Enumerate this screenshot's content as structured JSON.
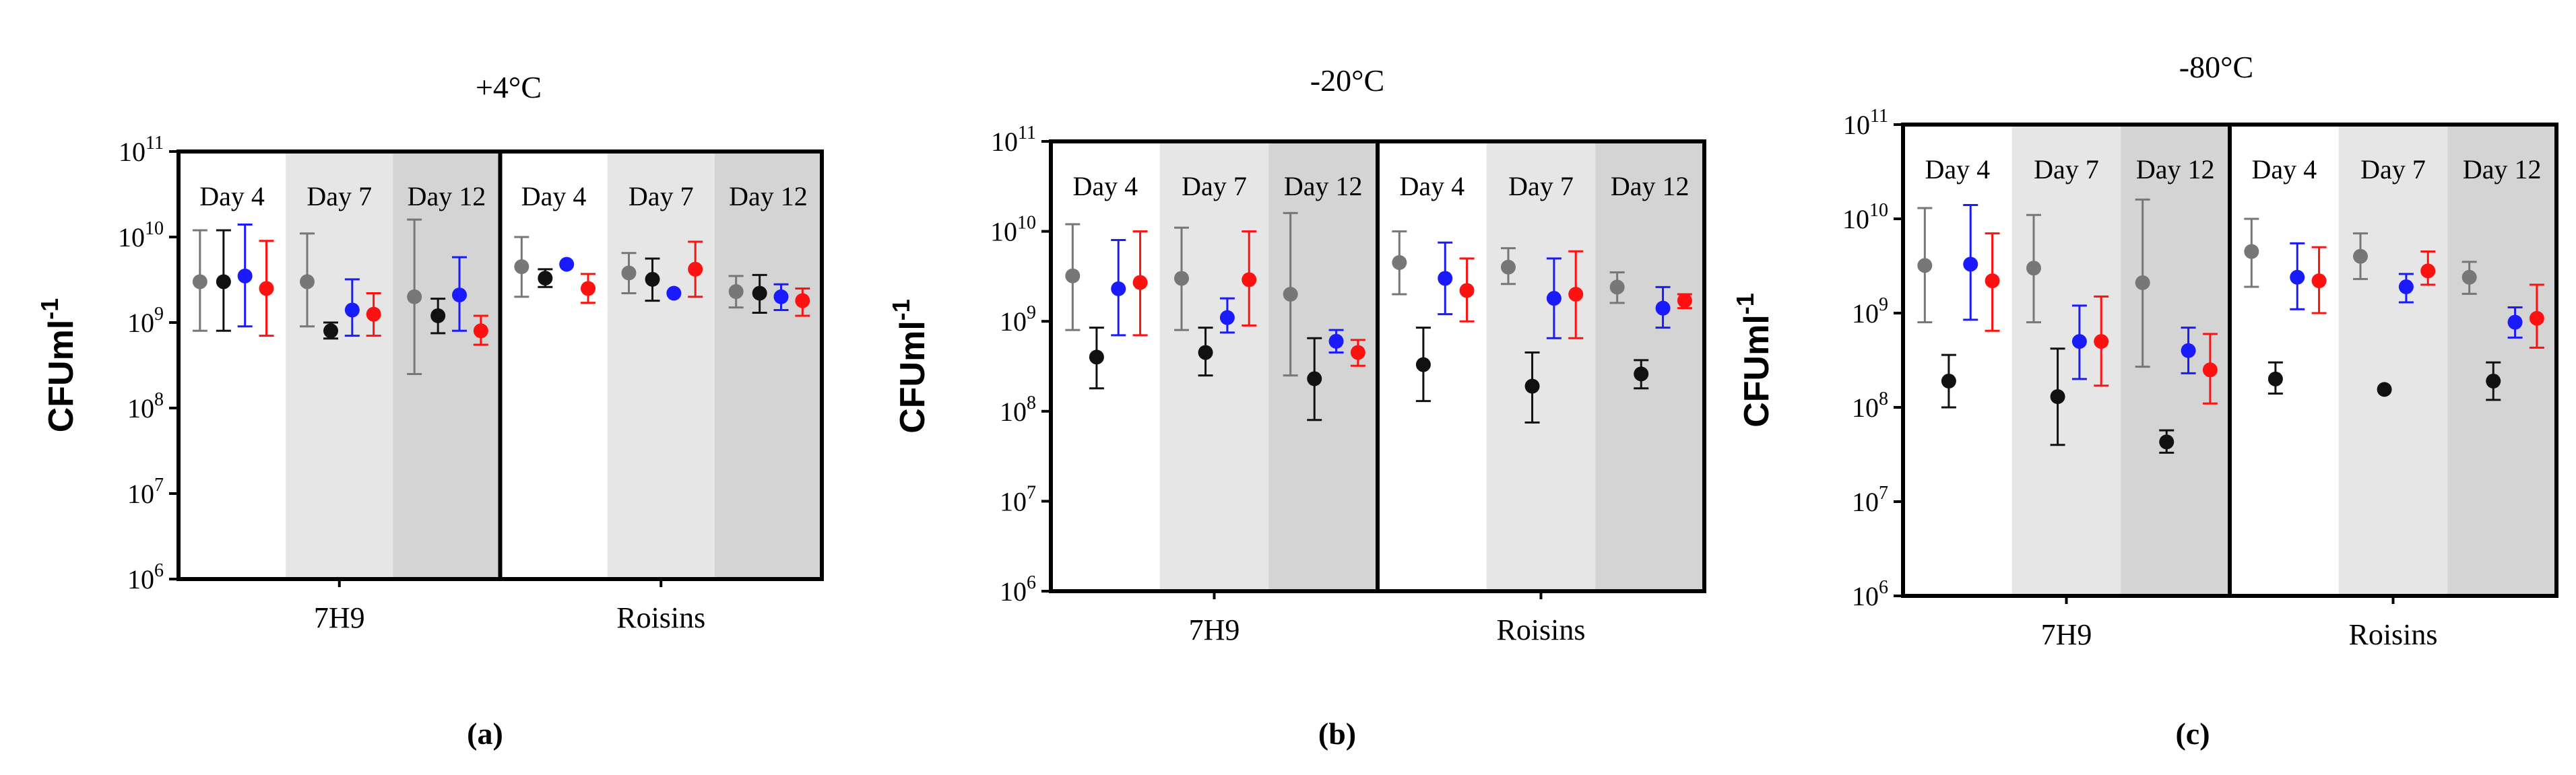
{
  "colors": {
    "grey": "#777777",
    "black": "#111111",
    "blue": "#1a1aff",
    "red": "#ff1111",
    "shade_light": "#e6e6e6",
    "shade_dark": "#d4d4d4"
  },
  "chart_data": [
    {
      "type": "scatter",
      "title": "+4°C",
      "caption": "(a)",
      "ylabel_main": "CFUml",
      "ylabel_sup": "-1",
      "yscale": "log",
      "ylim": [
        1000000,
        100000000000
      ],
      "yticks": [
        {
          "base": "10",
          "exp": "6"
        },
        {
          "base": "10",
          "exp": "7"
        },
        {
          "base": "10",
          "exp": "8"
        },
        {
          "base": "10",
          "exp": "9"
        },
        {
          "base": "10",
          "exp": "10"
        },
        {
          "base": "10",
          "exp": "11"
        }
      ],
      "groups": [
        "7H9",
        "Roisins"
      ],
      "days": [
        "Day 4",
        "Day 7",
        "Day 12"
      ],
      "series": [
        "grey",
        "black",
        "blue",
        "red"
      ],
      "points": [
        {
          "group": 0,
          "day": 0,
          "series": "grey",
          "y": 3000000000,
          "lo": 800000000,
          "hi": 12000000000
        },
        {
          "group": 0,
          "day": 0,
          "series": "black",
          "y": 3000000000,
          "lo": 800000000,
          "hi": 12000000000
        },
        {
          "group": 0,
          "day": 0,
          "series": "blue",
          "y": 3500000000,
          "lo": 900000000,
          "hi": 14000000000
        },
        {
          "group": 0,
          "day": 0,
          "series": "red",
          "y": 2500000000,
          "lo": 700000000,
          "hi": 9000000000
        },
        {
          "group": 0,
          "day": 1,
          "series": "grey",
          "y": 3000000000,
          "lo": 900000000,
          "hi": 11000000000
        },
        {
          "group": 0,
          "day": 1,
          "series": "black",
          "y": 800000000,
          "lo": 650000000,
          "hi": 1000000000
        },
        {
          "group": 0,
          "day": 1,
          "series": "blue",
          "y": 1400000000,
          "lo": 700000000,
          "hi": 3200000000
        },
        {
          "group": 0,
          "day": 1,
          "series": "red",
          "y": 1250000000,
          "lo": 700000000,
          "hi": 2200000000
        },
        {
          "group": 0,
          "day": 2,
          "series": "grey",
          "y": 2000000000,
          "lo": 250000000,
          "hi": 16000000000
        },
        {
          "group": 0,
          "day": 2,
          "series": "black",
          "y": 1200000000,
          "lo": 750000000,
          "hi": 1900000000
        },
        {
          "group": 0,
          "day": 2,
          "series": "blue",
          "y": 2100000000,
          "lo": 800000000,
          "hi": 5800000000
        },
        {
          "group": 0,
          "day": 2,
          "series": "red",
          "y": 800000000,
          "lo": 550000000,
          "hi": 1200000000
        },
        {
          "group": 1,
          "day": 0,
          "series": "grey",
          "y": 4500000000,
          "lo": 2000000000,
          "hi": 10000000000
        },
        {
          "group": 1,
          "day": 0,
          "series": "black",
          "y": 3300000000,
          "lo": 2600000000,
          "hi": 4200000000
        },
        {
          "group": 1,
          "day": 0,
          "series": "blue",
          "y": 4800000000,
          "lo": 4800000000,
          "hi": 4800000000
        },
        {
          "group": 1,
          "day": 0,
          "series": "red",
          "y": 2500000000,
          "lo": 1700000000,
          "hi": 3700000000
        },
        {
          "group": 1,
          "day": 1,
          "series": "grey",
          "y": 3800000000,
          "lo": 2200000000,
          "hi": 6500000000
        },
        {
          "group": 1,
          "day": 1,
          "series": "black",
          "y": 3200000000,
          "lo": 1800000000,
          "hi": 5600000000
        },
        {
          "group": 1,
          "day": 1,
          "series": "blue",
          "y": 2200000000,
          "lo": 2200000000,
          "hi": 2200000000
        },
        {
          "group": 1,
          "day": 1,
          "series": "red",
          "y": 4200000000,
          "lo": 2000000000,
          "hi": 8800000000
        },
        {
          "group": 1,
          "day": 2,
          "series": "grey",
          "y": 2300000000,
          "lo": 1500000000,
          "hi": 3500000000
        },
        {
          "group": 1,
          "day": 2,
          "series": "black",
          "y": 2200000000,
          "lo": 1300000000,
          "hi": 3600000000
        },
        {
          "group": 1,
          "day": 2,
          "series": "blue",
          "y": 2000000000,
          "lo": 1400000000,
          "hi": 2800000000
        },
        {
          "group": 1,
          "day": 2,
          "series": "red",
          "y": 1800000000,
          "lo": 1200000000,
          "hi": 2500000000
        }
      ]
    },
    {
      "type": "scatter",
      "title": "-20°C",
      "caption": "(b)",
      "ylabel_main": "CFUml",
      "ylabel_sup": "-1",
      "yscale": "log",
      "ylim": [
        1000000,
        100000000000
      ],
      "yticks": [
        {
          "base": "10",
          "exp": "6"
        },
        {
          "base": "10",
          "exp": "7"
        },
        {
          "base": "10",
          "exp": "8"
        },
        {
          "base": "10",
          "exp": "9"
        },
        {
          "base": "10",
          "exp": "10"
        },
        {
          "base": "10",
          "exp": "11"
        }
      ],
      "groups": [
        "7H9",
        "Roisins"
      ],
      "days": [
        "Day 4",
        "Day 7",
        "Day 12"
      ],
      "series": [
        "grey",
        "black",
        "blue",
        "red"
      ],
      "points": [
        {
          "group": 0,
          "day": 0,
          "series": "grey",
          "y": 3200000000,
          "lo": 800000000,
          "hi": 12000000000
        },
        {
          "group": 0,
          "day": 0,
          "series": "black",
          "y": 400000000,
          "lo": 180000000,
          "hi": 850000000
        },
        {
          "group": 0,
          "day": 0,
          "series": "blue",
          "y": 2300000000,
          "lo": 700000000,
          "hi": 8000000000
        },
        {
          "group": 0,
          "day": 0,
          "series": "red",
          "y": 2700000000,
          "lo": 700000000,
          "hi": 10000000000
        },
        {
          "group": 0,
          "day": 1,
          "series": "grey",
          "y": 3000000000,
          "lo": 800000000,
          "hi": 11000000000
        },
        {
          "group": 0,
          "day": 1,
          "series": "black",
          "y": 450000000,
          "lo": 250000000,
          "hi": 850000000
        },
        {
          "group": 0,
          "day": 1,
          "series": "blue",
          "y": 1100000000,
          "lo": 750000000,
          "hi": 1800000000
        },
        {
          "group": 0,
          "day": 1,
          "series": "red",
          "y": 2900000000,
          "lo": 900000000,
          "hi": 10000000000
        },
        {
          "group": 0,
          "day": 2,
          "series": "grey",
          "y": 2000000000,
          "lo": 250000000,
          "hi": 16000000000
        },
        {
          "group": 0,
          "day": 2,
          "series": "black",
          "y": 230000000,
          "lo": 80000000,
          "hi": 650000000
        },
        {
          "group": 0,
          "day": 2,
          "series": "blue",
          "y": 600000000,
          "lo": 450000000,
          "hi": 800000000
        },
        {
          "group": 0,
          "day": 2,
          "series": "red",
          "y": 450000000,
          "lo": 320000000,
          "hi": 620000000
        },
        {
          "group": 1,
          "day": 0,
          "series": "grey",
          "y": 4500000000,
          "lo": 2000000000,
          "hi": 10000000000
        },
        {
          "group": 1,
          "day": 0,
          "series": "black",
          "y": 330000000,
          "lo": 130000000,
          "hi": 850000000
        },
        {
          "group": 1,
          "day": 0,
          "series": "blue",
          "y": 3000000000,
          "lo": 1200000000,
          "hi": 7500000000
        },
        {
          "group": 1,
          "day": 0,
          "series": "red",
          "y": 2200000000,
          "lo": 1000000000,
          "hi": 5000000000
        },
        {
          "group": 1,
          "day": 1,
          "series": "grey",
          "y": 4000000000,
          "lo": 2600000000,
          "hi": 6500000000
        },
        {
          "group": 1,
          "day": 1,
          "series": "black",
          "y": 190000000,
          "lo": 75000000,
          "hi": 450000000
        },
        {
          "group": 1,
          "day": 1,
          "series": "blue",
          "y": 1800000000,
          "lo": 650000000,
          "hi": 5000000000
        },
        {
          "group": 1,
          "day": 1,
          "series": "red",
          "y": 2000000000,
          "lo": 650000000,
          "hi": 6000000000
        },
        {
          "group": 1,
          "day": 2,
          "series": "grey",
          "y": 2400000000,
          "lo": 1600000000,
          "hi": 3500000000
        },
        {
          "group": 1,
          "day": 2,
          "series": "black",
          "y": 260000000,
          "lo": 180000000,
          "hi": 370000000
        },
        {
          "group": 1,
          "day": 2,
          "series": "blue",
          "y": 1400000000,
          "lo": 850000000,
          "hi": 2400000000
        },
        {
          "group": 1,
          "day": 2,
          "series": "red",
          "y": 1700000000,
          "lo": 1400000000,
          "hi": 2000000000
        }
      ]
    },
    {
      "type": "scatter",
      "title": "-80°C",
      "caption": "(c)",
      "ylabel_main": "CFUml",
      "ylabel_sup": "-1",
      "yscale": "log",
      "ylim": [
        1000000,
        100000000000
      ],
      "yticks": [
        {
          "base": "10",
          "exp": "6"
        },
        {
          "base": "10",
          "exp": "7"
        },
        {
          "base": "10",
          "exp": "8"
        },
        {
          "base": "10",
          "exp": "9"
        },
        {
          "base": "10",
          "exp": "10"
        },
        {
          "base": "10",
          "exp": "11"
        }
      ],
      "groups": [
        "7H9",
        "Roisins"
      ],
      "days": [
        "Day 4",
        "Day 7",
        "Day 12"
      ],
      "series": [
        "grey",
        "black",
        "blue",
        "red"
      ],
      "points": [
        {
          "group": 0,
          "day": 0,
          "series": "grey",
          "y": 3200000000,
          "lo": 800000000,
          "hi": 13000000000
        },
        {
          "group": 0,
          "day": 0,
          "series": "black",
          "y": 190000000,
          "lo": 100000000,
          "hi": 360000000
        },
        {
          "group": 0,
          "day": 0,
          "series": "blue",
          "y": 3300000000,
          "lo": 850000000,
          "hi": 14000000000
        },
        {
          "group": 0,
          "day": 0,
          "series": "red",
          "y": 2200000000,
          "lo": 650000000,
          "hi": 7000000000
        },
        {
          "group": 0,
          "day": 1,
          "series": "grey",
          "y": 3000000000,
          "lo": 800000000,
          "hi": 11000000000
        },
        {
          "group": 0,
          "day": 1,
          "series": "black",
          "y": 130000000,
          "lo": 40000000,
          "hi": 420000000
        },
        {
          "group": 0,
          "day": 1,
          "series": "blue",
          "y": 500000000,
          "lo": 200000000,
          "hi": 1200000000
        },
        {
          "group": 0,
          "day": 1,
          "series": "red",
          "y": 500000000,
          "lo": 170000000,
          "hi": 1500000000
        },
        {
          "group": 0,
          "day": 2,
          "series": "grey",
          "y": 2100000000,
          "lo": 270000000,
          "hi": 16000000000
        },
        {
          "group": 0,
          "day": 2,
          "series": "black",
          "y": 43000000,
          "lo": 33000000,
          "hi": 57000000
        },
        {
          "group": 0,
          "day": 2,
          "series": "blue",
          "y": 400000000,
          "lo": 230000000,
          "hi": 700000000
        },
        {
          "group": 0,
          "day": 2,
          "series": "red",
          "y": 250000000,
          "lo": 110000000,
          "hi": 600000000
        },
        {
          "group": 1,
          "day": 0,
          "series": "grey",
          "y": 4500000000,
          "lo": 1900000000,
          "hi": 10000000000
        },
        {
          "group": 1,
          "day": 0,
          "series": "black",
          "y": 200000000,
          "lo": 140000000,
          "hi": 300000000
        },
        {
          "group": 1,
          "day": 0,
          "series": "blue",
          "y": 2400000000,
          "lo": 1100000000,
          "hi": 5500000000
        },
        {
          "group": 1,
          "day": 0,
          "series": "red",
          "y": 2200000000,
          "lo": 1000000000,
          "hi": 5000000000
        },
        {
          "group": 1,
          "day": 1,
          "series": "grey",
          "y": 4000000000,
          "lo": 2300000000,
          "hi": 7000000000
        },
        {
          "group": 1,
          "day": 1,
          "series": "black",
          "y": 155000000,
          "lo": 155000000,
          "hi": 155000000
        },
        {
          "group": 1,
          "day": 1,
          "series": "blue",
          "y": 1900000000,
          "lo": 1300000000,
          "hi": 2600000000
        },
        {
          "group": 1,
          "day": 1,
          "series": "red",
          "y": 2800000000,
          "lo": 2000000000,
          "hi": 4500000000
        },
        {
          "group": 1,
          "day": 2,
          "series": "grey",
          "y": 2400000000,
          "lo": 1600000000,
          "hi": 3500000000
        },
        {
          "group": 1,
          "day": 2,
          "series": "black",
          "y": 190000000,
          "lo": 120000000,
          "hi": 300000000
        },
        {
          "group": 1,
          "day": 2,
          "series": "blue",
          "y": 800000000,
          "lo": 550000000,
          "hi": 1150000000
        },
        {
          "group": 1,
          "day": 2,
          "series": "red",
          "y": 880000000,
          "lo": 430000000,
          "hi": 2000000000
        }
      ]
    }
  ]
}
